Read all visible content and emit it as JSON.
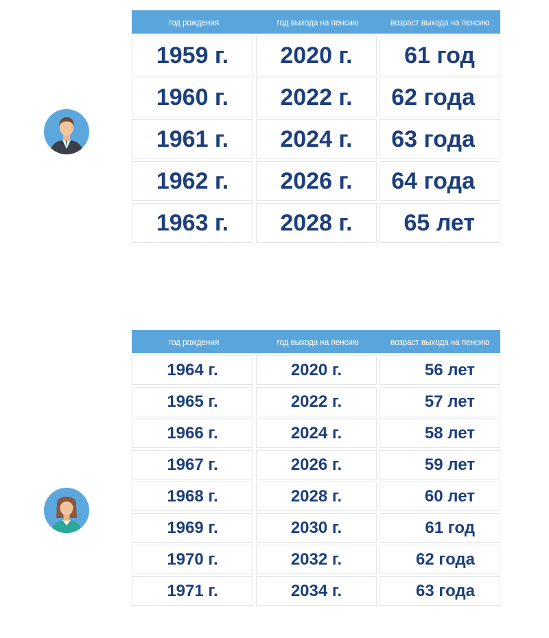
{
  "headers": {
    "birth_year": "год рождения",
    "retire_year": "год выхода на пенсию",
    "retire_age": "возраст выхода на пенсию"
  },
  "men_table": {
    "avatar_icon": "man-avatar-icon",
    "rows": [
      {
        "birth": "1959 г.",
        "retire": "2020 г.",
        "age": "61 год"
      },
      {
        "birth": "1960 г.",
        "retire": "2022 г.",
        "age": "62 года"
      },
      {
        "birth": "1961 г.",
        "retire": "2024 г.",
        "age": "63 года"
      },
      {
        "birth": "1962 г.",
        "retire": "2026 г.",
        "age": "64 года"
      },
      {
        "birth": "1963 г.",
        "retire": "2028 г.",
        "age": "65 лет"
      }
    ]
  },
  "women_table": {
    "avatar_icon": "woman-avatar-icon",
    "rows": [
      {
        "birth": "1964 г.",
        "retire": "2020 г.",
        "age": "56 лет"
      },
      {
        "birth": "1965 г.",
        "retire": "2022 г.",
        "age": "57 лет"
      },
      {
        "birth": "1966 г.",
        "retire": "2024 г.",
        "age": "58 лет"
      },
      {
        "birth": "1967 г.",
        "retire": "2026 г.",
        "age": "59 лет"
      },
      {
        "birth": "1968 г.",
        "retire": "2028 г.",
        "age": "60 лет"
      },
      {
        "birth": "1969 г.",
        "retire": "2030 г.",
        "age": "61 год"
      },
      {
        "birth": "1970 г.",
        "retire": "2032 г.",
        "age": "62 года"
      },
      {
        "birth": "1971 г.",
        "retire": "2034 г.",
        "age": "63 года"
      }
    ]
  },
  "colors": {
    "header_bg": "#5aa5dc",
    "text_navy": "#1d3f7c",
    "avatar_bg": "#5ba7de"
  }
}
